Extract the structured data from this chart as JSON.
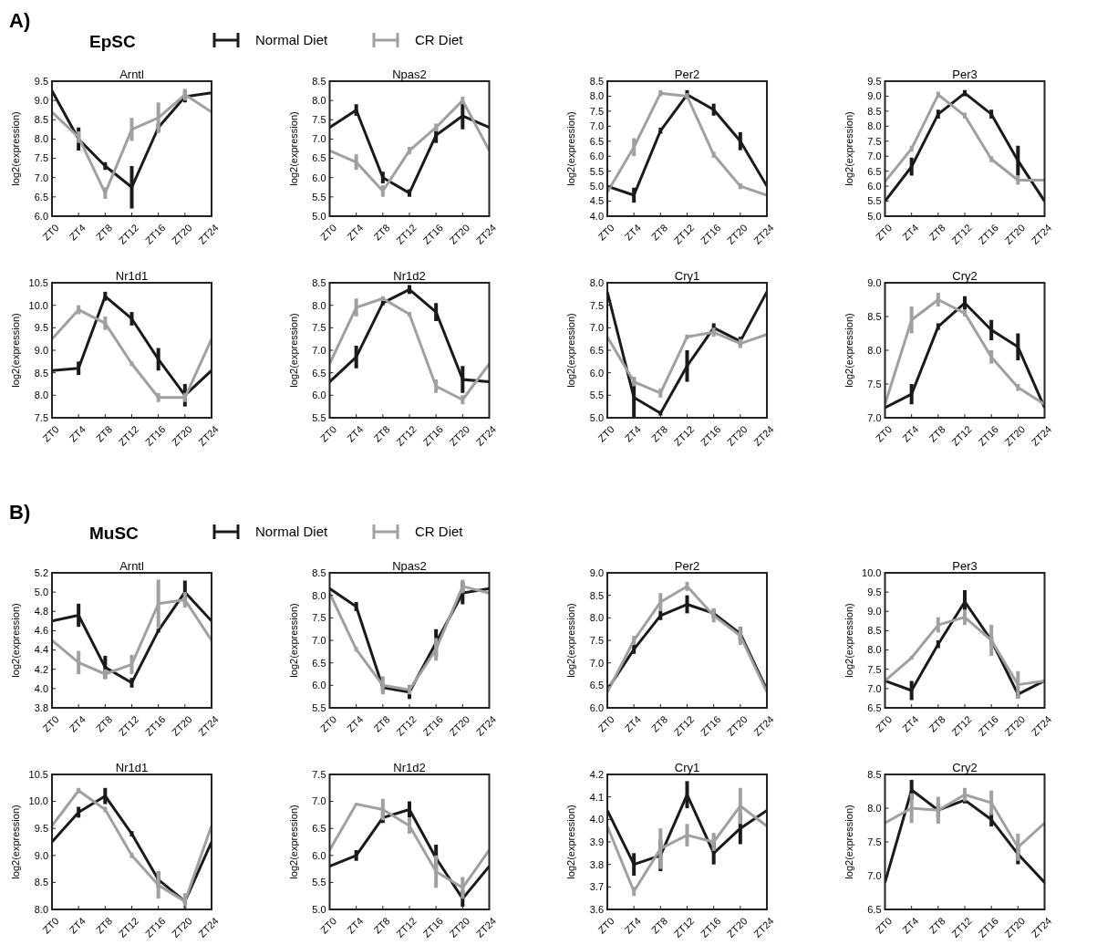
{
  "chart_data": [
    {
      "type": "line",
      "title": "Arntl",
      "ylabel": "log2(expression)",
      "annotations": [
        "A)",
        "EpSC"
      ],
      "legend": "top",
      "categories": [
        "ZT0",
        "ZT4",
        "ZT8",
        "ZT12",
        "ZT16",
        "ZT20",
        "ZT24"
      ],
      "ylim": [
        6,
        9.5
      ],
      "yticks": [
        {
          "value": 6,
          "label": "6.0"
        },
        6.5,
        {
          "value": 7,
          "label": "7.0"
        },
        7.5,
        {
          "value": 8,
          "label": "8.0"
        },
        8.5,
        {
          "value": 9,
          "label": "9.0"
        },
        9.5
      ],
      "series": [
        {
          "name": "Normal Diet",
          "color": "#1a1a1a",
          "values": [
            9.25,
            8.0,
            7.3,
            6.75,
            8.3,
            9.1,
            9.2
          ],
          "errors": [
            null,
            0.3,
            0.1,
            0.55,
            0.1,
            0.15,
            null
          ]
        },
        {
          "name": "CR Diet",
          "color": "#a0a0a0",
          "values": [
            8.7,
            8.05,
            6.6,
            8.25,
            8.55,
            9.15,
            8.7
          ],
          "errors": [
            null,
            0.15,
            0.15,
            0.3,
            0.4,
            0.15,
            null
          ]
        }
      ]
    },
    {
      "type": "line",
      "title": "Npas2",
      "ylabel": "log2(expression)",
      "categories": [
        "ZT0",
        "ZT4",
        "ZT8",
        "ZT12",
        "ZT16",
        "ZT20",
        "ZT24"
      ],
      "ylim": [
        5,
        8.5
      ],
      "yticks": [
        {
          "value": 5,
          "label": "5.0"
        },
        5.5,
        {
          "value": 6,
          "label": "6.0"
        },
        6.5,
        {
          "value": 7,
          "label": "7.0"
        },
        7.5,
        {
          "value": 8,
          "label": "8.0"
        },
        8.5
      ],
      "series": [
        {
          "color": "#1a1a1a",
          "values": [
            7.3,
            7.75,
            6.0,
            5.6,
            7.1,
            7.6,
            7.3
          ],
          "errors": [
            null,
            0.15,
            0.15,
            0.1,
            0.2,
            0.35,
            null
          ]
        },
        {
          "color": "#a0a0a0",
          "values": [
            6.7,
            6.4,
            5.65,
            6.7,
            7.3,
            8.0,
            6.7
          ],
          "errors": [
            null,
            0.2,
            0.15,
            0.1,
            0.1,
            0.1,
            null
          ]
        }
      ]
    },
    {
      "type": "line",
      "title": "Per2",
      "ylabel": "log2(expression)",
      "categories": [
        "ZT0",
        "ZT4",
        "ZT8",
        "ZT12",
        "ZT16",
        "ZT20",
        "ZT24"
      ],
      "ylim": [
        4,
        8.5
      ],
      "yticks": [
        {
          "value": 4,
          "label": "4.0"
        },
        4.5,
        {
          "value": 5,
          "label": "5.0"
        },
        5.5,
        {
          "value": 6,
          "label": "6.0"
        },
        6.5,
        {
          "value": 7,
          "label": "7.0"
        },
        7.5,
        {
          "value": 8,
          "label": "8.0"
        },
        8.5
      ],
      "series": [
        {
          "color": "#1a1a1a",
          "values": [
            5.0,
            4.7,
            6.85,
            8.05,
            7.55,
            6.5,
            5.0
          ],
          "errors": [
            null,
            0.25,
            0.1,
            0.15,
            0.2,
            0.3,
            null
          ]
        },
        {
          "color": "#a0a0a0",
          "values": [
            4.8,
            6.3,
            8.1,
            8.0,
            6.05,
            5.0,
            4.7
          ],
          "errors": [
            null,
            0.3,
            0.1,
            0.1,
            0.1,
            0.1,
            null
          ]
        }
      ]
    },
    {
      "type": "line",
      "title": "Per3",
      "ylabel": "log2(expression)",
      "categories": [
        "ZT0",
        "ZT4",
        "ZT8",
        "ZT12",
        "ZT16",
        "ZT20",
        "ZT24"
      ],
      "ylim": [
        5,
        9.5
      ],
      "yticks": [
        {
          "value": 5,
          "label": "5.0"
        },
        5.5,
        {
          "value": 6,
          "label": "6.0"
        },
        6.5,
        {
          "value": 7,
          "label": "7.0"
        },
        7.5,
        {
          "value": 8,
          "label": "8.0"
        },
        8.5,
        {
          "value": 9,
          "label": "9.0"
        },
        9.5
      ],
      "series": [
        {
          "color": "#1a1a1a",
          "values": [
            5.5,
            6.65,
            8.4,
            9.1,
            8.4,
            6.85,
            5.5
          ],
          "errors": [
            null,
            0.3,
            0.15,
            0.1,
            0.15,
            0.5,
            null
          ]
        },
        {
          "color": "#a0a0a0",
          "values": [
            6.15,
            7.25,
            9.05,
            8.35,
            6.9,
            6.2,
            6.2
          ],
          "errors": [
            null,
            0.1,
            0.1,
            0.1,
            0.1,
            0.15,
            null
          ]
        }
      ]
    },
    {
      "type": "line",
      "title": "Nr1d1",
      "ylabel": "log2(expression)",
      "categories": [
        "ZT0",
        "ZT4",
        "ZT8",
        "ZT12",
        "ZT16",
        "ZT20",
        "ZT24"
      ],
      "ylim": [
        7.5,
        10.5
      ],
      "yticks": [
        7.5,
        {
          "value": 8,
          "label": "8.0"
        },
        8.5,
        {
          "value": 9,
          "label": "9.0"
        },
        9.5,
        {
          "value": 10,
          "label": "10.0"
        },
        10.5
      ],
      "series": [
        {
          "color": "#1a1a1a",
          "values": [
            8.55,
            8.6,
            10.2,
            9.7,
            8.8,
            8.0,
            8.55
          ],
          "errors": [
            null,
            0.15,
            0.1,
            0.15,
            0.25,
            0.25,
            null
          ]
        },
        {
          "color": "#a0a0a0",
          "values": [
            9.25,
            9.9,
            9.6,
            8.7,
            7.95,
            7.95,
            9.25
          ],
          "errors": [
            null,
            0.1,
            0.15,
            0.05,
            0.1,
            0.1,
            null
          ]
        }
      ]
    },
    {
      "type": "line",
      "title": "Nr1d2",
      "ylabel": "log2(expression)",
      "categories": [
        "ZT0",
        "ZT4",
        "ZT8",
        "ZT12",
        "ZT16",
        "ZT20",
        "ZT24"
      ],
      "ylim": [
        5.5,
        8.5
      ],
      "yticks": [
        5.5,
        {
          "value": 6,
          "label": "6.0"
        },
        6.5,
        {
          "value": 7,
          "label": "7.0"
        },
        7.5,
        {
          "value": 8,
          "label": "8.0"
        },
        8.5
      ],
      "series": [
        {
          "color": "#1a1a1a",
          "values": [
            6.3,
            6.85,
            8.05,
            8.35,
            7.85,
            6.35,
            6.3
          ],
          "errors": [
            null,
            0.25,
            0.05,
            0.1,
            0.2,
            0.3,
            null
          ]
        },
        {
          "color": "#a0a0a0",
          "values": [
            6.7,
            7.95,
            8.15,
            7.8,
            6.2,
            5.9,
            6.7
          ],
          "errors": [
            null,
            0.2,
            0.05,
            0.05,
            0.15,
            0.1,
            null
          ]
        }
      ]
    },
    {
      "type": "line",
      "title": "Cry1",
      "ylabel": "log2(expression)",
      "categories": [
        "ZT0",
        "ZT4",
        "ZT8",
        "ZT12",
        "ZT16",
        "ZT20",
        "ZT24"
      ],
      "ylim": [
        5,
        8
      ],
      "yticks": [
        {
          "value": 5,
          "label": "5.0"
        },
        5.5,
        {
          "value": 6,
          "label": "6.0"
        },
        6.5,
        {
          "value": 7,
          "label": "7.0"
        },
        7.5,
        {
          "value": 8,
          "label": "8.0"
        }
      ],
      "series": [
        {
          "color": "#1a1a1a",
          "values": [
            7.8,
            5.45,
            5.1,
            6.15,
            7.0,
            6.7,
            7.8
          ],
          "errors": [
            null,
            0.45,
            0.05,
            0.35,
            0.1,
            0.1,
            null
          ]
        },
        {
          "color": "#a0a0a0",
          "values": [
            6.8,
            5.8,
            5.55,
            6.8,
            6.9,
            6.65,
            6.85
          ],
          "errors": [
            null,
            0.1,
            0.1,
            0.05,
            0.1,
            0.1,
            null
          ]
        }
      ]
    },
    {
      "type": "line",
      "title": "Cry2",
      "ylabel": "log2(expression)",
      "categories": [
        "ZT0",
        "ZT4",
        "ZT8",
        "ZT12",
        "ZT16",
        "ZT20",
        "ZT24"
      ],
      "ylim": [
        7,
        9
      ],
      "yticks": [
        {
          "value": 7,
          "label": "7.0"
        },
        7.5,
        {
          "value": 8,
          "label": "8.0"
        },
        8.5,
        {
          "value": 9,
          "label": "9.0"
        }
      ],
      "series": [
        {
          "color": "#1a1a1a",
          "values": [
            7.15,
            7.35,
            8.35,
            8.7,
            8.3,
            8.05,
            7.15
          ],
          "errors": [
            null,
            0.15,
            0.05,
            0.1,
            0.15,
            0.2,
            null
          ]
        },
        {
          "color": "#a0a0a0",
          "values": [
            7.2,
            8.45,
            8.75,
            8.55,
            7.9,
            7.45,
            7.2
          ],
          "errors": [
            null,
            0.2,
            0.1,
            0.05,
            0.1,
            0.05,
            null
          ]
        }
      ]
    },
    {
      "type": "line",
      "title": "Arntl",
      "ylabel": "log2(expression)",
      "annotations": [
        "B)",
        "MuSC"
      ],
      "legend": "top",
      "categories": [
        "ZT0",
        "ZT4",
        "ZT8",
        "ZT12",
        "ZT16",
        "ZT20",
        "ZT24"
      ],
      "ylim": [
        3.8,
        5.2
      ],
      "yticks": [
        3.8,
        {
          "value": 4,
          "label": "4.0"
        },
        4.2,
        4.4,
        4.6,
        4.8,
        {
          "value": 5,
          "label": "5.0"
        },
        5.2
      ],
      "series": [
        {
          "name": "Normal Diet",
          "color": "#1a1a1a",
          "values": [
            4.7,
            4.76,
            4.22,
            4.06,
            4.6,
            5.0,
            4.7
          ],
          "errors": [
            null,
            0.12,
            0.12,
            0.05,
            0.02,
            0.12,
            null
          ]
        },
        {
          "name": "CR Diet",
          "color": "#a0a0a0",
          "values": [
            4.5,
            4.27,
            4.15,
            4.25,
            4.88,
            4.92,
            4.5
          ],
          "errors": [
            null,
            0.12,
            0.05,
            0.1,
            0.25,
            0.08,
            null
          ]
        }
      ]
    },
    {
      "type": "line",
      "title": "Npas2",
      "ylabel": "log2(expression)",
      "categories": [
        "ZT0",
        "ZT4",
        "ZT8",
        "ZT12",
        "ZT16",
        "ZT20",
        "ZT24"
      ],
      "ylim": [
        5.5,
        8.5
      ],
      "yticks": [
        5.5,
        {
          "value": 6,
          "label": "6.0"
        },
        6.5,
        {
          "value": 7,
          "label": "7.0"
        },
        7.5,
        {
          "value": 8,
          "label": "8.0"
        },
        8.5
      ],
      "series": [
        {
          "color": "#1a1a1a",
          "values": [
            8.15,
            7.75,
            5.95,
            5.85,
            6.95,
            8.05,
            8.15
          ],
          "errors": [
            null,
            0.1,
            0.1,
            0.15,
            0.3,
            0.25,
            null
          ]
        },
        {
          "color": "#a0a0a0",
          "values": [
            8.05,
            6.8,
            6.0,
            5.9,
            6.8,
            8.2,
            8.05
          ],
          "errors": [
            null,
            0.05,
            0.2,
            0.1,
            0.25,
            0.15,
            null
          ]
        }
      ]
    },
    {
      "type": "line",
      "title": "Per2",
      "ylabel": "log2(expression)",
      "categories": [
        "ZT0",
        "ZT4",
        "ZT8",
        "ZT12",
        "ZT16",
        "ZT20",
        "ZT24"
      ],
      "ylim": [
        6,
        9
      ],
      "yticks": [
        {
          "value": 6,
          "label": "6.0"
        },
        6.5,
        {
          "value": 7,
          "label": "7.0"
        },
        7.5,
        {
          "value": 8,
          "label": "8.0"
        },
        8.5,
        {
          "value": 9,
          "label": "9.0"
        }
      ],
      "series": [
        {
          "color": "#1a1a1a",
          "values": [
            6.4,
            7.3,
            8.05,
            8.3,
            8.1,
            7.65,
            6.4
          ],
          "errors": [
            null,
            0.1,
            0.1,
            0.2,
            0.1,
            0.15,
            null
          ]
        },
        {
          "color": "#a0a0a0",
          "values": [
            6.35,
            7.5,
            8.35,
            8.7,
            8.05,
            7.6,
            6.35
          ],
          "errors": [
            null,
            0.1,
            0.2,
            0.1,
            0.15,
            0.2,
            null
          ]
        }
      ]
    },
    {
      "type": "line",
      "title": "Per3",
      "ylabel": "log2(expression)",
      "categories": [
        "ZT0",
        "ZT4",
        "ZT8",
        "ZT12",
        "ZT16",
        "ZT20",
        "ZT24"
      ],
      "ylim": [
        6.5,
        10
      ],
      "yticks": [
        6.5,
        {
          "value": 7,
          "label": "7.0"
        },
        7.5,
        {
          "value": 8,
          "label": "8.0"
        },
        8.5,
        {
          "value": 9,
          "label": "9.0"
        },
        9.5,
        {
          "value": 10,
          "label": "10.0"
        }
      ],
      "series": [
        {
          "color": "#1a1a1a",
          "values": [
            7.2,
            6.95,
            8.15,
            9.25,
            8.25,
            6.85,
            7.2
          ],
          "errors": [
            null,
            0.25,
            0.1,
            0.3,
            0.1,
            0.1,
            null
          ]
        },
        {
          "color": "#a0a0a0",
          "values": [
            7.2,
            7.8,
            8.65,
            8.85,
            8.25,
            7.1,
            7.2
          ],
          "errors": [
            null,
            0.05,
            0.2,
            0.2,
            0.4,
            0.35,
            null
          ]
        }
      ]
    },
    {
      "type": "line",
      "title": "Nr1d1",
      "ylabel": "log2(expression)",
      "categories": [
        "ZT0",
        "ZT4",
        "ZT8",
        "ZT12",
        "ZT16",
        "ZT20",
        "ZT24"
      ],
      "ylim": [
        8,
        10.5
      ],
      "yticks": [
        {
          "value": 8,
          "label": "8.0"
        },
        8.5,
        {
          "value": 9,
          "label": "9.0"
        },
        9.5,
        {
          "value": 10,
          "label": "10.0"
        },
        10.5
      ],
      "series": [
        {
          "color": "#1a1a1a",
          "values": [
            9.25,
            9.8,
            10.1,
            9.4,
            8.55,
            8.15,
            9.25
          ],
          "errors": [
            null,
            0.1,
            0.15,
            0.05,
            0.15,
            0.05,
            null
          ]
        },
        {
          "color": "#a0a0a0",
          "values": [
            9.55,
            10.2,
            9.85,
            9.0,
            8.45,
            8.15,
            9.55
          ],
          "errors": [
            null,
            0.05,
            0.05,
            0.05,
            0.25,
            0.15,
            null
          ]
        }
      ]
    },
    {
      "type": "line",
      "title": "Nr1d2",
      "ylabel": "log2(expression)",
      "categories": [
        "ZT0",
        "ZT4",
        "ZT8",
        "ZT12",
        "ZT16",
        "ZT20",
        "ZT24"
      ],
      "ylim": [
        5,
        7.5
      ],
      "yticks": [
        {
          "value": 5,
          "label": "5.0"
        },
        5.5,
        {
          "value": 6,
          "label": "6.0"
        },
        6.5,
        {
          "value": 7,
          "label": "7.0"
        },
        7.5
      ],
      "series": [
        {
          "color": "#1a1a1a",
          "values": [
            5.8,
            6.0,
            6.7,
            6.85,
            5.95,
            5.2,
            5.8
          ],
          "errors": [
            null,
            0.1,
            0.1,
            0.15,
            0.25,
            0.15,
            null
          ]
        },
        {
          "color": "#a0a0a0",
          "values": [
            6.1,
            6.95,
            6.85,
            6.55,
            5.7,
            5.4,
            6.1
          ],
          "errors": [
            null,
            0.02,
            0.2,
            0.15,
            0.3,
            0.2,
            null
          ]
        }
      ]
    },
    {
      "type": "line",
      "title": "Cry1",
      "ylabel": "log2(expression)",
      "categories": [
        "ZT0",
        "ZT4",
        "ZT8",
        "ZT12",
        "ZT16",
        "ZT20",
        "ZT24"
      ],
      "ylim": [
        3.6,
        4.2
      ],
      "yticks": [
        3.6,
        3.7,
        3.8,
        3.9,
        {
          "value": 4,
          "label": "4.0"
        },
        4.1,
        4.2
      ],
      "series": [
        {
          "color": "#1a1a1a",
          "values": [
            4.04,
            3.8,
            3.84,
            4.11,
            3.85,
            3.96,
            4.04
          ],
          "errors": [
            null,
            0.05,
            0.07,
            0.06,
            0.05,
            0.07,
            null
          ]
        },
        {
          "color": "#a0a0a0",
          "values": [
            3.97,
            3.68,
            3.87,
            3.93,
            3.9,
            4.06,
            3.97
          ],
          "errors": [
            null,
            0.02,
            0.09,
            0.05,
            0.04,
            0.08,
            null
          ]
        }
      ]
    },
    {
      "type": "line",
      "title": "Cry2",
      "ylabel": "log2(expression)",
      "categories": [
        "ZT0",
        "ZT4",
        "ZT8",
        "ZT12",
        "ZT16",
        "ZT20",
        "ZT24"
      ],
      "ylim": [
        6.5,
        8.5
      ],
      "yticks": [
        6.5,
        {
          "value": 7,
          "label": "7.0"
        },
        7.5,
        {
          "value": 8,
          "label": "8.0"
        },
        8.5
      ],
      "series": [
        {
          "color": "#1a1a1a",
          "values": [
            6.9,
            8.27,
            7.97,
            8.12,
            7.83,
            7.32,
            6.9
          ],
          "errors": [
            null,
            0.15,
            0.1,
            0.05,
            0.1,
            0.15,
            null
          ]
        },
        {
          "color": "#a0a0a0",
          "values": [
            7.78,
            8.0,
            7.97,
            8.2,
            8.08,
            7.42,
            7.78
          ],
          "errors": [
            null,
            0.22,
            0.2,
            0.1,
            0.18,
            0.2,
            null
          ]
        }
      ]
    }
  ]
}
